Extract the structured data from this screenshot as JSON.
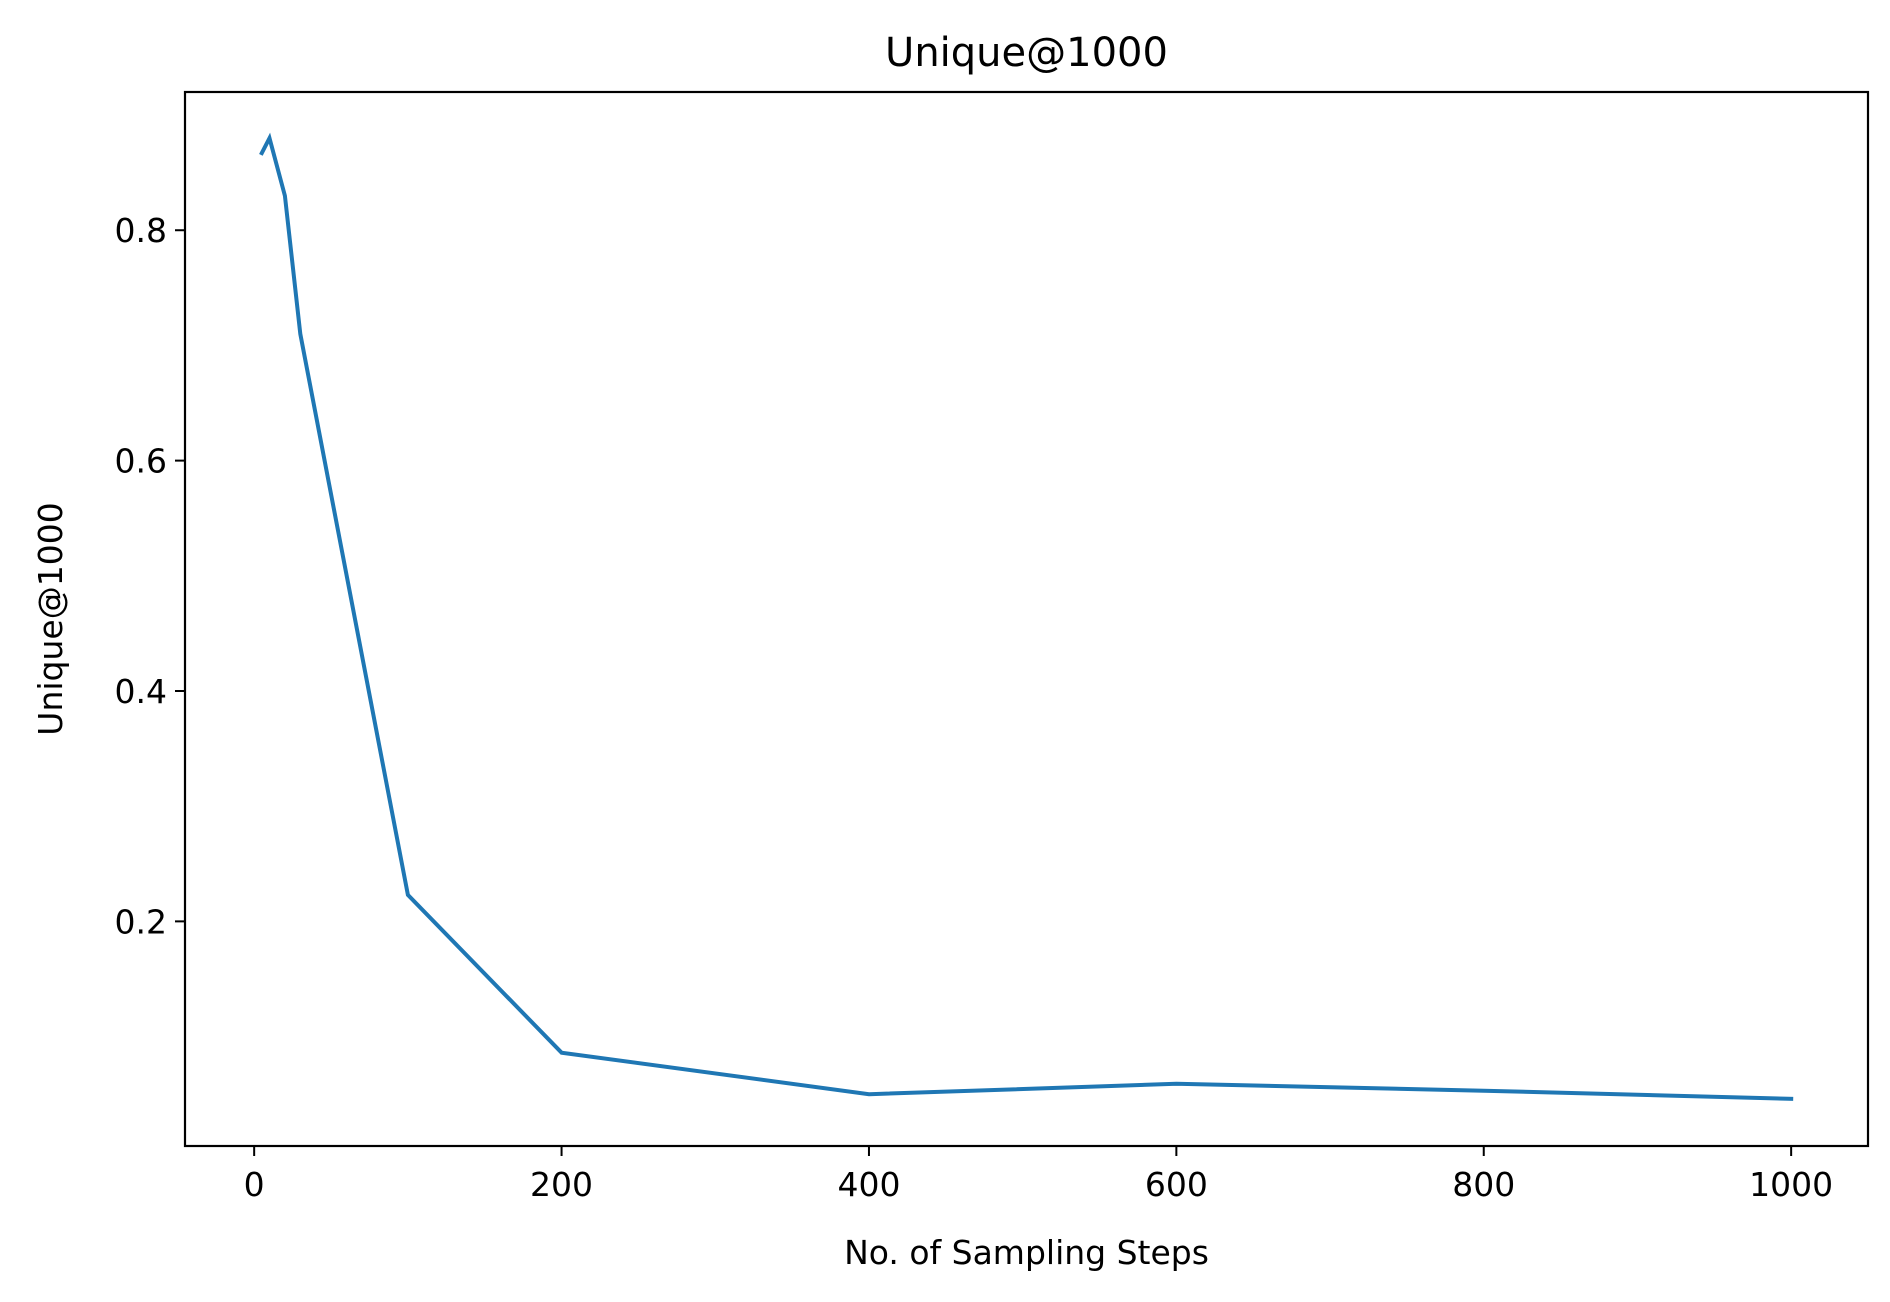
{
  "chart_data": {
    "type": "line",
    "title": "Unique@1000",
    "xlabel": "No. of Sampling Steps",
    "ylabel": "Unique@1000",
    "xlim": [
      -45,
      1050
    ],
    "ylim": [
      0.005,
      0.92
    ],
    "xticks": [
      0,
      200,
      400,
      600,
      800,
      1000
    ],
    "xtick_labels": [
      "0",
      "200",
      "400",
      "600",
      "800",
      "1000"
    ],
    "yticks": [
      0.2,
      0.4,
      0.6,
      0.8
    ],
    "ytick_labels": [
      "0.2",
      "0.4",
      "0.6",
      "0.8"
    ],
    "grid": false,
    "series": [
      {
        "color": "#1f77b4",
        "x": [
          5,
          10,
          20,
          30,
          100,
          200,
          400,
          600,
          800,
          1000
        ],
        "y": [
          0.867,
          0.88,
          0.83,
          0.71,
          0.223,
          0.086,
          0.05,
          0.059,
          0.053,
          0.046
        ]
      }
    ]
  }
}
